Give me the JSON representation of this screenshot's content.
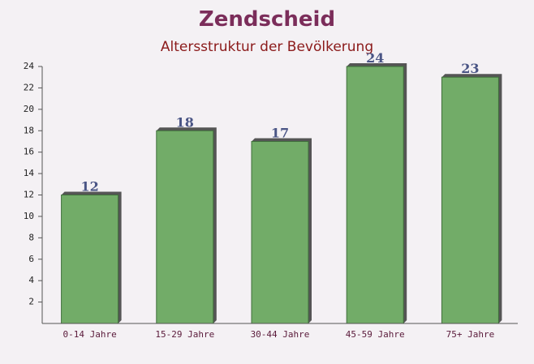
{
  "chart_data": {
    "type": "bar",
    "title": "Zendscheid",
    "subtitle": "Altersstruktur der Bevölkerung",
    "categories": [
      "0-14 Jahre",
      "15-29 Jahre",
      "30-44 Jahre",
      "45-59 Jahre",
      "75+ Jahre"
    ],
    "values": [
      12,
      18,
      17,
      24,
      23
    ],
    "color": "#6aa860",
    "ylim": [
      0,
      24
    ],
    "yticks": [
      2,
      4,
      6,
      8,
      10,
      12,
      14,
      16,
      18,
      20,
      22,
      24
    ]
  }
}
